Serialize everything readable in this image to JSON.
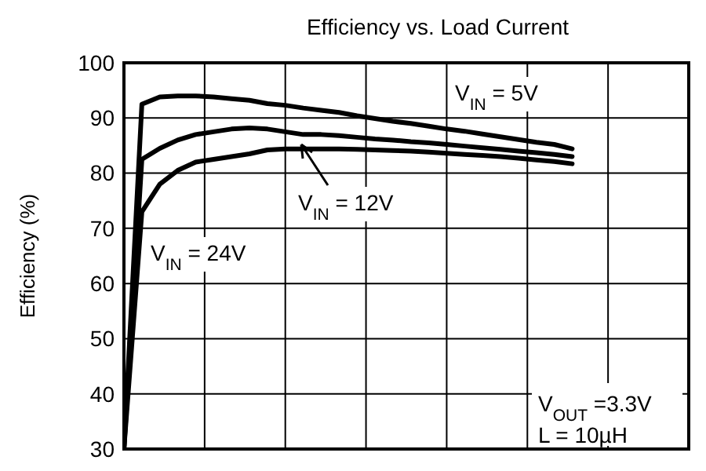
{
  "chart_data": {
    "type": "line",
    "title": "Efficiency vs. Load Current",
    "ylabel": "Efficiency (%)",
    "categories": [
      null,
      null,
      null,
      null,
      null,
      null,
      null,
      null,
      null,
      null,
      null,
      null,
      null,
      null,
      null,
      null,
      null,
      null,
      null,
      null,
      null,
      null,
      null,
      null,
      null,
      null,
      null,
      null,
      null
    ],
    "series": [
      {
        "name": "V$_{IN}$ = 5V",
        "color": "#000000",
        "values": [
          30,
          92.5,
          93.8,
          94,
          94,
          93.8,
          93.5,
          93.2,
          92.6,
          92.3,
          91.8,
          91.4,
          91.0,
          90.4,
          89.9,
          89.4,
          89.0,
          88.5,
          88.0,
          87.6,
          87.1,
          86.6,
          86.1,
          85.6,
          85.2,
          84.4,
          null,
          null,
          null
        ]
      },
      {
        "name": "V$_{IN}$ = 12V",
        "color": "#000000",
        "values": [
          30,
          82.5,
          84.5,
          86.0,
          87.0,
          87.5,
          88.0,
          88.2,
          88.0,
          87.5,
          87.0,
          87.0,
          86.8,
          86.5,
          86.2,
          86.0,
          85.7,
          85.5,
          85.2,
          84.9,
          84.6,
          84.3,
          84.0,
          83.7,
          83.4,
          83.0,
          null,
          null,
          null
        ]
      },
      {
        "name": "V$_{IN}$ = 24V",
        "color": "#000000",
        "values": [
          30,
          73,
          78,
          80.5,
          82.0,
          82.5,
          83.0,
          83.5,
          84.2,
          84.4,
          84.4,
          84.4,
          84.4,
          84.3,
          84.2,
          84.1,
          84.0,
          83.8,
          83.6,
          83.4,
          83.2,
          83.0,
          82.7,
          82.4,
          82.1,
          81.7,
          null,
          null,
          null
        ]
      }
    ],
    "annotations": [
      "V$_{OUT}$ =3.3V",
      "L = 10µH"
    ],
    "ylim": [
      30,
      100
    ],
    "yticks": [
      30,
      40,
      50,
      60,
      70,
      80,
      90,
      100
    ],
    "grid": true,
    "tick_labels": "y",
    "line_style": "solid"
  }
}
